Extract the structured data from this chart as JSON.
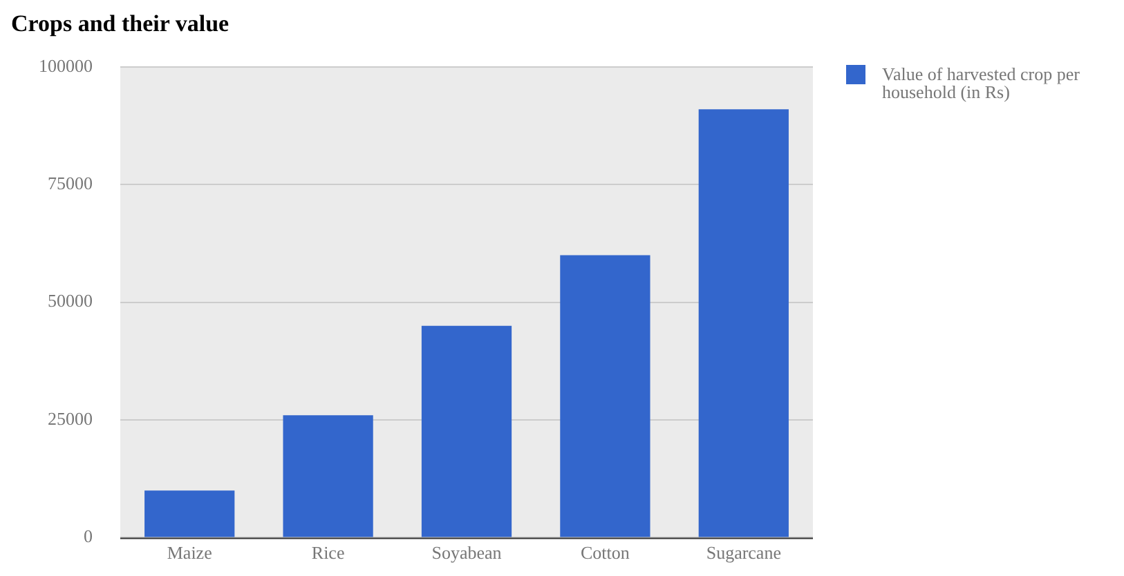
{
  "chart_data": {
    "type": "bar",
    "title": "Crops and their value",
    "categories": [
      "Maize",
      "Rice",
      "Soyabean",
      "Cotton",
      "Sugarcane"
    ],
    "series": [
      {
        "name": "Value of harvested crop per household (in Rs)",
        "color": "#3366cc",
        "values": [
          10000,
          26000,
          45000,
          60000,
          91000
        ]
      }
    ],
    "ylim": [
      0,
      100000
    ],
    "yticks": [
      0,
      25000,
      50000,
      75000,
      100000
    ],
    "grid": "y",
    "legend": "top right"
  }
}
